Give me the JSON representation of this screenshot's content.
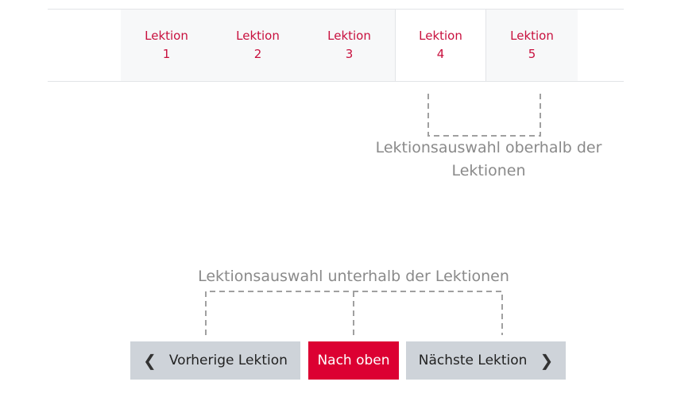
{
  "tabs": [
    {
      "label": "Lektion",
      "number": "1"
    },
    {
      "label": "Lektion",
      "number": "2"
    },
    {
      "label": "Lektion",
      "number": "3"
    },
    {
      "label": "Lektion",
      "number": "4",
      "active": true
    },
    {
      "label": "Lektion",
      "number": "5"
    }
  ],
  "annotations": {
    "top_line1": "Lektionsauswahl oberhalb der",
    "top_line2": "Lektionen",
    "bottom": "Lektionsauswahl unterhalb der Lektionen"
  },
  "buttons": {
    "prev": "Vorherige Lektion",
    "top": "Nach oben",
    "next": "Nächste Lektion"
  },
  "icons": {
    "prev": "chevron-left-icon",
    "next": "chevron-right-icon"
  },
  "colors": {
    "accent": "#dc0032",
    "tab_text": "#c8103e",
    "button_gray": "#ced3d9",
    "annotation": "#8a8a8a"
  }
}
